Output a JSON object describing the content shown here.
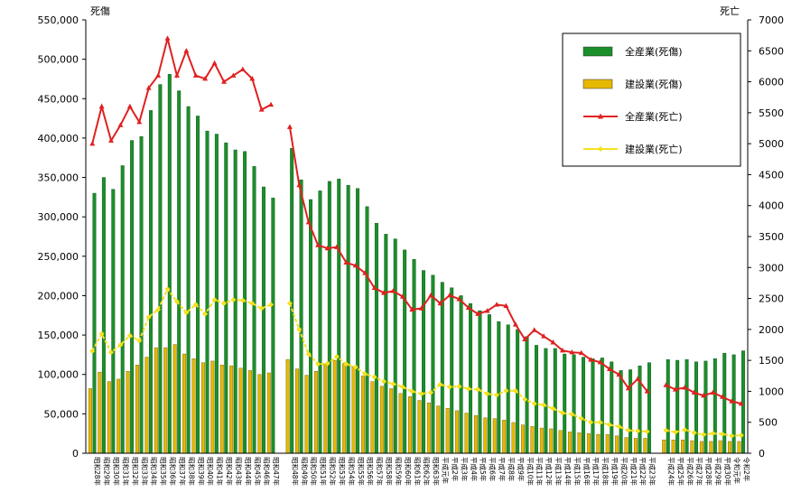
{
  "chart_data": {
    "type": "bar",
    "left_axis_title": "死傷",
    "right_axis_title": "死亡",
    "left_axis": {
      "min": 0,
      "max": 550000,
      "step": 50000,
      "tick_labels": [
        "0",
        "50,000",
        "100,000",
        "150,000",
        "200,000",
        "250,000",
        "300,000",
        "350,000",
        "400,000",
        "450,000",
        "500,000",
        "550,000"
      ]
    },
    "right_axis": {
      "min": 0,
      "max": 7000,
      "step": 500,
      "tick_labels": [
        "0",
        "500",
        "1000",
        "1500",
        "2000",
        "2500",
        "3000",
        "3500",
        "4000",
        "4500",
        "5000",
        "5500",
        "6000",
        "6500",
        "7000"
      ]
    },
    "segments": [
      {
        "categories": [
          "昭和28年",
          "昭和29年",
          "昭和30年",
          "昭和31年",
          "昭和32年",
          "昭和33年",
          "昭和34年",
          "昭和35年",
          "昭和36年",
          "昭和37年",
          "昭和38年",
          "昭和39年",
          "昭和40年",
          "昭和41年",
          "昭和42年",
          "昭和43年",
          "昭和44年",
          "昭和45年",
          "昭和46年",
          "昭和47年"
        ],
        "series": {
          "all_injury": [
            330000,
            350000,
            335000,
            365000,
            397000,
            402000,
            435000,
            468000,
            481000,
            460000,
            440000,
            428000,
            409000,
            405000,
            394000,
            385000,
            383000,
            364000,
            338000,
            324000
          ],
          "const_injury": [
            82000,
            103000,
            91000,
            94000,
            104000,
            112000,
            122000,
            134000,
            134000,
            138000,
            126000,
            120000,
            115000,
            117000,
            112000,
            111000,
            108000,
            105000,
            100000,
            102000
          ],
          "all_death": [
            5000,
            5600,
            5050,
            5300,
            5600,
            5350,
            5900,
            6100,
            6700,
            6100,
            6500,
            6100,
            6050,
            6300,
            6000,
            6100,
            6200,
            6050,
            5550,
            5630
          ],
          "const_death": [
            1650,
            1930,
            1630,
            1750,
            1900,
            1820,
            2200,
            2320,
            2650,
            2450,
            2270,
            2400,
            2250,
            2480,
            2420,
            2480,
            2470,
            2420,
            2340,
            2400
          ]
        }
      },
      {
        "categories": [
          "昭和48年",
          "昭和49年",
          "昭和50年",
          "昭和51年",
          "昭和52年",
          "昭和53年",
          "昭和54年",
          "昭和55年",
          "昭和56年",
          "昭和57年",
          "昭和58年",
          "昭和59年",
          "昭和60年",
          "昭和61年",
          "昭和62年",
          "昭和63年",
          "平成元年",
          "平成2年",
          "平成3年",
          "平成4年",
          "平成5年",
          "平成6年",
          "平成7年",
          "平成8年",
          "平成9年",
          "平成10年",
          "平成11年",
          "平成12年",
          "平成13年",
          "平成14年",
          "平成15年",
          "平成16年",
          "平成17年",
          "平成18年",
          "平成19年",
          "平成20年",
          "平成21年",
          "平成22年",
          "平成23年"
        ],
        "series": {
          "all_injury": [
            387000,
            347000,
            322000,
            333000,
            345000,
            348000,
            340000,
            336000,
            313000,
            292000,
            278000,
            272000,
            258000,
            246000,
            232000,
            226000,
            217000,
            210000,
            200000,
            190000,
            181000,
            176000,
            167000,
            163000,
            157000,
            148000,
            137000,
            133000,
            133000,
            126000,
            125000,
            122000,
            120000,
            121000,
            116000,
            105000,
            106000,
            111000,
            115000
          ],
          "const_injury": [
            119000,
            107000,
            99000,
            104000,
            113000,
            118000,
            114000,
            110000,
            98000,
            91000,
            85000,
            82000,
            76000,
            72000,
            67000,
            64000,
            60000,
            57000,
            54000,
            51000,
            48000,
            45000,
            44000,
            42000,
            39000,
            36000,
            34000,
            32000,
            31000,
            29000,
            27000,
            26000,
            25000,
            24000,
            24000,
            22000,
            20000,
            19000,
            19000
          ],
          "const_death": [
            2420,
            2000,
            1600,
            1440,
            1450,
            1560,
            1440,
            1390,
            1280,
            1230,
            1160,
            1120,
            1070,
            1000,
            960,
            980,
            1110,
            1070,
            1080,
            1040,
            1030,
            960,
            940,
            1010,
            1010,
            870,
            800,
            780,
            720,
            650,
            630,
            560,
            500,
            500,
            460,
            430,
            370,
            360,
            350
          ],
          "all_death": [
            5270,
            4330,
            3730,
            3360,
            3310,
            3330,
            3080,
            3030,
            2910,
            2670,
            2590,
            2620,
            2530,
            2320,
            2340,
            2550,
            2420,
            2550,
            2490,
            2350,
            2250,
            2300,
            2400,
            2380,
            2080,
            1840,
            1990,
            1890,
            1790,
            1660,
            1630,
            1620,
            1510,
            1470,
            1360,
            1270,
            1050,
            1200,
            1000
          ]
        }
      },
      {
        "categories": [
          "平成24年",
          "平成25年",
          "平成26年",
          "平成27年",
          "平成28年",
          "平成29年",
          "平成30年",
          "令和元年"
        ],
        "series": {
          "all_injury": [
            119000,
            118000,
            119000,
            116000,
            117000,
            120000,
            127000,
            125000,
            130000
          ],
          "const_injury": [
            17000,
            17000,
            17000,
            16000,
            15000,
            15000,
            16000,
            15000,
            15000
          ],
          "all_death": [
            1100,
            1030,
            1060,
            980,
            930,
            980,
            910,
            840,
            800
          ],
          "const_death": [
            370,
            340,
            380,
            330,
            300,
            320,
            310,
            280,
            290
          ]
        }
      }
    ],
    "categories_extra": [
      "令和2年"
    ],
    "legend": [
      {
        "label": "全産業(死傷)",
        "kind": "bar",
        "color": "#1a8f2a"
      },
      {
        "label": "建設業(死傷)",
        "kind": "bar",
        "color": "#e6b800"
      },
      {
        "label": "全産業(死亡)",
        "kind": "line",
        "color": "#e02020"
      },
      {
        "label": "建設業(死亡)",
        "kind": "line",
        "color": "#f4e020"
      }
    ],
    "colors": {
      "all_injury": "#1a8f2a",
      "const_injury": "#e6b800",
      "all_death": "#e02020",
      "const_death": "#f4e020"
    },
    "grid": false,
    "legend_position": "top-right"
  }
}
